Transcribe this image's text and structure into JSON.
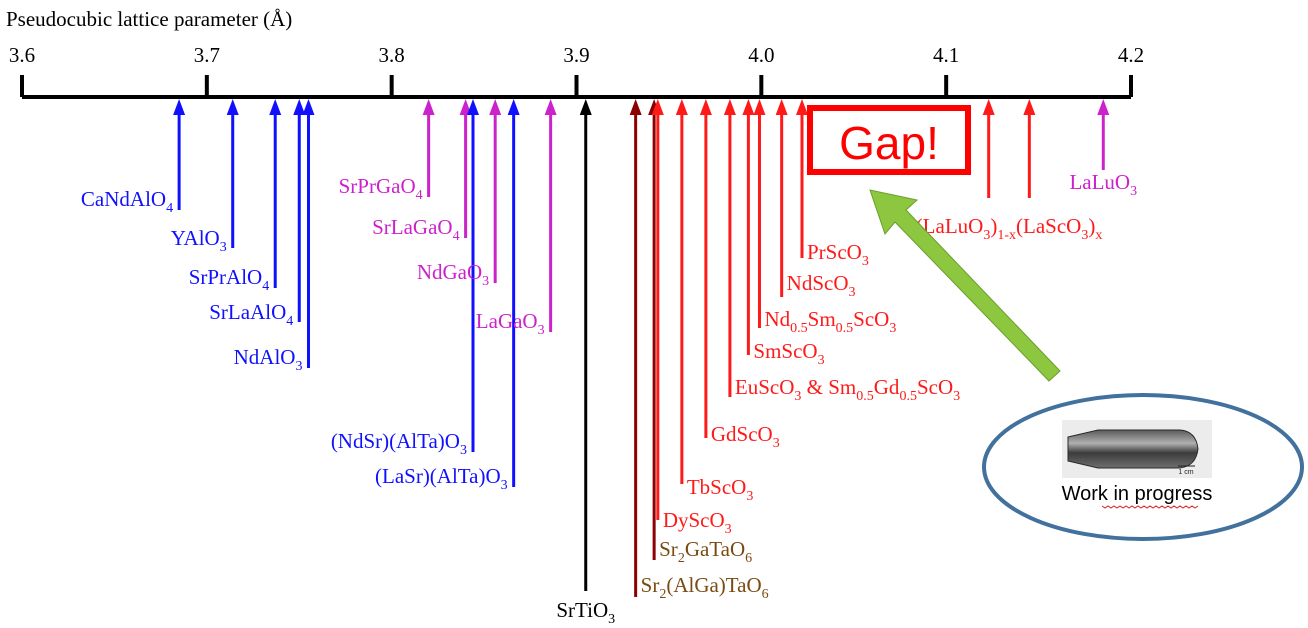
{
  "chart_data": {
    "type": "number-line",
    "title": "Pseudocubic lattice parameter (Å)",
    "axis": {
      "min": 3.6,
      "max": 4.2,
      "ticks": [
        3.6,
        3.7,
        3.8,
        3.9,
        4.0,
        4.1,
        4.2
      ],
      "tick_labels": [
        "3.6",
        "3.7",
        "3.8",
        "3.9",
        "4.0",
        "4.1",
        "4.2"
      ]
    },
    "colors": {
      "blue": "#1010ff",
      "magenta": "#cc22cc",
      "black": "#000000",
      "darkred": "#8b0000",
      "brown": "#7a4a10",
      "red": "#ff1a1a",
      "gap_border": "#ff0000",
      "arrow_green": "#8dc63f",
      "ellipse_border": "#41719c"
    },
    "materials": [
      {
        "value": 3.685,
        "parts": [
          [
            "CaNdAlO",
            ""
          ],
          [
            "4",
            "sub"
          ]
        ],
        "color": "blue",
        "text_color": "blue"
      },
      {
        "value": 3.714,
        "parts": [
          [
            "YAlO",
            ""
          ],
          [
            "3",
            "sub"
          ]
        ],
        "color": "blue",
        "text_color": "blue"
      },
      {
        "value": 3.737,
        "parts": [
          [
            "SrPrAlO",
            ""
          ],
          [
            "4",
            "sub"
          ]
        ],
        "color": "blue",
        "text_color": "blue"
      },
      {
        "value": 3.75,
        "parts": [
          [
            "SrLaAlO",
            ""
          ],
          [
            "4",
            "sub"
          ]
        ],
        "color": "blue",
        "text_color": "blue"
      },
      {
        "value": 3.755,
        "parts": [
          [
            "NdAlO",
            ""
          ],
          [
            "3",
            "sub"
          ]
        ],
        "color": "blue",
        "text_color": "blue"
      },
      {
        "value": 3.82,
        "parts": [
          [
            "SrPrGaO",
            ""
          ],
          [
            "4",
            "sub"
          ]
        ],
        "color": "magenta",
        "text_color": "magenta"
      },
      {
        "value": 3.84,
        "parts": [
          [
            "SrLaGaO",
            ""
          ],
          [
            "4",
            "sub"
          ]
        ],
        "color": "magenta",
        "text_color": "magenta"
      },
      {
        "value": 3.844,
        "parts": [
          [
            "(NdSr)(AlTa)O",
            ""
          ],
          [
            "3",
            "sub"
          ]
        ],
        "color": "blue",
        "text_color": "blue"
      },
      {
        "value": 3.856,
        "parts": [
          [
            "NdGaO",
            ""
          ],
          [
            "3",
            "sub"
          ]
        ],
        "color": "magenta",
        "text_color": "magenta"
      },
      {
        "value": 3.866,
        "parts": [
          [
            "(LaSr)(AlTa)O",
            ""
          ],
          [
            "3",
            "sub"
          ]
        ],
        "color": "blue",
        "text_color": "blue"
      },
      {
        "value": 3.886,
        "parts": [
          [
            "LaGaO",
            ""
          ],
          [
            "3",
            "sub"
          ]
        ],
        "color": "magenta",
        "text_color": "magenta"
      },
      {
        "value": 3.905,
        "parts": [
          [
            "SrTiO",
            ""
          ],
          [
            "3",
            "sub"
          ]
        ],
        "color": "black",
        "text_color": "black"
      },
      {
        "value": 3.932,
        "parts": [
          [
            "Sr",
            ""
          ],
          [
            "2",
            "sub"
          ],
          [
            "(AlGa)TaO",
            ""
          ],
          [
            "6",
            "sub"
          ]
        ],
        "color": "darkred",
        "text_color": "brown"
      },
      {
        "value": 3.942,
        "parts": [
          [
            "Sr",
            ""
          ],
          [
            "2",
            "sub"
          ],
          [
            "GaTaO",
            ""
          ],
          [
            "6",
            "sub"
          ]
        ],
        "color": "darkred",
        "text_color": "brown"
      },
      {
        "value": 3.944,
        "parts": [
          [
            "DyScO",
            ""
          ],
          [
            "3",
            "sub"
          ]
        ],
        "color": "red",
        "text_color": "red"
      },
      {
        "value": 3.957,
        "parts": [
          [
            "TbScO",
            ""
          ],
          [
            "3",
            "sub"
          ]
        ],
        "color": "red",
        "text_color": "red"
      },
      {
        "value": 3.97,
        "parts": [
          [
            "GdScO",
            ""
          ],
          [
            "3",
            "sub"
          ]
        ],
        "color": "red",
        "text_color": "red"
      },
      {
        "value": 3.983,
        "parts": [
          [
            "EuScO",
            ""
          ],
          [
            "3",
            "sub"
          ],
          [
            " & Sm",
            ""
          ],
          [
            "0.5",
            "sub"
          ],
          [
            "Gd",
            ""
          ],
          [
            "0.5",
            "sub"
          ],
          [
            "ScO",
            ""
          ],
          [
            "3",
            "sub"
          ]
        ],
        "color": "red",
        "text_color": "red"
      },
      {
        "value": 3.993,
        "parts": [
          [
            "SmScO",
            ""
          ],
          [
            "3",
            "sub"
          ]
        ],
        "color": "red",
        "text_color": "red"
      },
      {
        "value": 3.999,
        "parts": [
          [
            "Nd",
            ""
          ],
          [
            "0.5",
            "sub"
          ],
          [
            "Sm",
            ""
          ],
          [
            "0.5",
            "sub"
          ],
          [
            "ScO",
            ""
          ],
          [
            "3",
            "sub"
          ]
        ],
        "color": "red",
        "text_color": "red"
      },
      {
        "value": 4.011,
        "parts": [
          [
            "NdScO",
            ""
          ],
          [
            "3",
            "sub"
          ]
        ],
        "color": "red",
        "text_color": "red"
      },
      {
        "value": 4.022,
        "parts": [
          [
            "PrScO",
            ""
          ],
          [
            "3",
            "sub"
          ]
        ],
        "color": "red",
        "text_color": "red"
      },
      {
        "value": 4.123,
        "parts": [
          [
            "(LaLuO",
            ""
          ],
          [
            "3",
            "sub"
          ],
          [
            ")",
            ""
          ],
          [
            "1-x",
            "sub"
          ],
          [
            "(LaScO",
            ""
          ],
          [
            "3",
            "sub"
          ],
          [
            ")",
            ""
          ],
          [
            "x",
            "sub"
          ]
        ],
        "color": "red",
        "text_color": "red",
        "shared_with_next": true
      },
      {
        "value": 4.145,
        "parts": [],
        "color": "red",
        "text_color": "red"
      },
      {
        "value": 4.185,
        "parts": [
          [
            "LaLuO",
            ""
          ],
          [
            "3",
            "sub"
          ]
        ],
        "color": "magenta",
        "text_color": "magenta"
      }
    ],
    "annotations": {
      "gap_label": "Gap!",
      "work_in_progress_label": "Work in progress",
      "scale_bar_label": "1 cm"
    }
  }
}
